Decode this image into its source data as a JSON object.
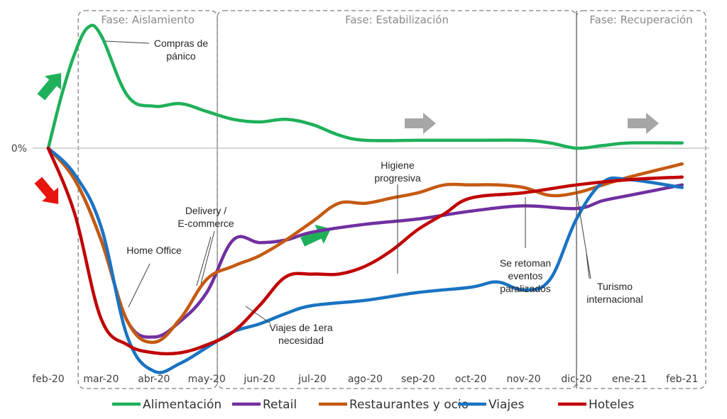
{
  "chart_data": {
    "type": "line",
    "title": "",
    "xlabel": "",
    "ylabel": "",
    "y_tick_labels": [
      "0%"
    ],
    "grid": false,
    "legend_position": "bottom",
    "categories": [
      "feb-20",
      "mar-20",
      "abr-20",
      "may-20",
      "jun-20",
      "jul-20",
      "ago-20",
      "sep-20",
      "oct-20",
      "nov-20",
      "dic-20",
      "ene-21",
      "feb-21"
    ],
    "ylim": [
      -1.0,
      0.5
    ],
    "series": [
      {
        "name": "Alimentación",
        "color": "#1fb05a",
        "points": [
          [
            0,
            0.0
          ],
          [
            0.25,
            0.2
          ],
          [
            0.5,
            0.36
          ],
          [
            0.75,
            0.46
          ],
          [
            1.0,
            0.43
          ],
          [
            1.5,
            0.2
          ],
          [
            2.0,
            0.16
          ],
          [
            2.5,
            0.17
          ],
          [
            3.0,
            0.14
          ],
          [
            3.5,
            0.11
          ],
          [
            4.0,
            0.1
          ],
          [
            4.5,
            0.11
          ],
          [
            5.0,
            0.09
          ],
          [
            5.5,
            0.05
          ],
          [
            6.0,
            0.03
          ],
          [
            7.0,
            0.03
          ],
          [
            8.0,
            0.03
          ],
          [
            9.0,
            0.03
          ],
          [
            9.5,
            0.02
          ],
          [
            10.0,
            0.0
          ],
          [
            10.5,
            0.01
          ],
          [
            11.0,
            0.02
          ],
          [
            12.0,
            0.02
          ]
        ]
      },
      {
        "name": "Retail",
        "color": "#7030a0",
        "points": [
          [
            0,
            0.0
          ],
          [
            0.5,
            -0.12
          ],
          [
            1.0,
            -0.35
          ],
          [
            1.5,
            -0.66
          ],
          [
            2.0,
            -0.72
          ],
          [
            2.5,
            -0.66
          ],
          [
            3.0,
            -0.55
          ],
          [
            3.5,
            -0.35
          ],
          [
            4.0,
            -0.36
          ],
          [
            4.5,
            -0.35
          ],
          [
            5.0,
            -0.32
          ],
          [
            6.0,
            -0.29
          ],
          [
            7.0,
            -0.27
          ],
          [
            8.0,
            -0.24
          ],
          [
            9.0,
            -0.22
          ],
          [
            10.0,
            -0.23
          ],
          [
            10.5,
            -0.2
          ],
          [
            11.0,
            -0.18
          ],
          [
            12.0,
            -0.14
          ]
        ]
      },
      {
        "name": "Restaurantes y ocio",
        "color": "#c55a11",
        "points": [
          [
            0,
            0.0
          ],
          [
            0.5,
            -0.12
          ],
          [
            1.0,
            -0.35
          ],
          [
            1.5,
            -0.66
          ],
          [
            2.0,
            -0.74
          ],
          [
            2.5,
            -0.65
          ],
          [
            3.0,
            -0.5
          ],
          [
            3.5,
            -0.45
          ],
          [
            4.0,
            -0.41
          ],
          [
            4.5,
            -0.35
          ],
          [
            5.0,
            -0.28
          ],
          [
            5.5,
            -0.21
          ],
          [
            6.0,
            -0.21
          ],
          [
            6.5,
            -0.19
          ],
          [
            7.0,
            -0.17
          ],
          [
            7.5,
            -0.14
          ],
          [
            8.0,
            -0.14
          ],
          [
            8.5,
            -0.14
          ],
          [
            9.0,
            -0.15
          ],
          [
            9.5,
            -0.18
          ],
          [
            10.0,
            -0.17
          ],
          [
            10.5,
            -0.14
          ],
          [
            11.0,
            -0.11
          ],
          [
            12.0,
            -0.06
          ]
        ]
      },
      {
        "name": "Viajes",
        "color": "#1a73c2",
        "points": [
          [
            0,
            0.0
          ],
          [
            0.5,
            -0.1
          ],
          [
            1.0,
            -0.3
          ],
          [
            1.5,
            -0.72
          ],
          [
            2.0,
            -0.85
          ],
          [
            2.5,
            -0.82
          ],
          [
            3.0,
            -0.76
          ],
          [
            3.5,
            -0.7
          ],
          [
            4.0,
            -0.67
          ],
          [
            4.5,
            -0.63
          ],
          [
            5.0,
            -0.6
          ],
          [
            6.0,
            -0.58
          ],
          [
            7.0,
            -0.55
          ],
          [
            8.0,
            -0.53
          ],
          [
            8.5,
            -0.51
          ],
          [
            9.0,
            -0.54
          ],
          [
            9.5,
            -0.5
          ],
          [
            10.0,
            -0.27
          ],
          [
            10.5,
            -0.13
          ],
          [
            11.0,
            -0.12
          ],
          [
            12.0,
            -0.15
          ]
        ]
      },
      {
        "name": "Hoteles",
        "color": "#c00000",
        "points": [
          [
            0,
            0.0
          ],
          [
            0.5,
            -0.25
          ],
          [
            1.0,
            -0.65
          ],
          [
            1.5,
            -0.75
          ],
          [
            2.0,
            -0.78
          ],
          [
            2.5,
            -0.78
          ],
          [
            3.0,
            -0.75
          ],
          [
            3.5,
            -0.7
          ],
          [
            4.0,
            -0.6
          ],
          [
            4.5,
            -0.49
          ],
          [
            5.0,
            -0.48
          ],
          [
            5.5,
            -0.48
          ],
          [
            6.0,
            -0.45
          ],
          [
            6.5,
            -0.39
          ],
          [
            7.0,
            -0.31
          ],
          [
            7.5,
            -0.25
          ],
          [
            8.0,
            -0.19
          ],
          [
            9.0,
            -0.17
          ],
          [
            10.0,
            -0.14
          ],
          [
            11.0,
            -0.12
          ],
          [
            12.0,
            -0.11
          ]
        ]
      }
    ],
    "phases": [
      {
        "label": "Fase: Aislamiento",
        "from": 0.5,
        "to": 3.2
      },
      {
        "label": "Fase: Estabilización",
        "from": 3.2,
        "to": 10.0
      },
      {
        "label": "Fase: Recuperación",
        "from": 10.0,
        "to": 12.5
      }
    ],
    "annotations": [
      {
        "lines": [
          "Compras de",
          "pánico"
        ],
        "target": [
          1.0,
          0.46
        ]
      },
      {
        "lines": [
          "Delivery /",
          "E-commerce"
        ],
        "target": [
          2.8,
          -0.55
        ]
      },
      {
        "lines": [
          "Home Office"
        ],
        "target": [
          1.7,
          -0.72
        ]
      },
      {
        "lines": [
          "Higiene",
          "progresiva"
        ],
        "target": [
          6.5,
          -0.62
        ]
      },
      {
        "lines": [
          "Viajes de 1era",
          "necesidad"
        ],
        "target": [
          4.3,
          -0.7
        ]
      },
      {
        "lines": [
          "Se retoman",
          "eventos",
          "paralizados"
        ],
        "target": [
          8.5,
          -0.19
        ]
      },
      {
        "lines": [
          "Turismo",
          "internacional"
        ],
        "target": [
          9.6,
          -0.17
        ]
      }
    ],
    "trend_arrows": [
      {
        "direction": "up",
        "color": "#1fb05a"
      },
      {
        "direction": "down",
        "color": "#e8140f"
      },
      {
        "direction": "up",
        "color": "#1fb05a"
      },
      {
        "direction": "right",
        "color": "#a6a6a6"
      },
      {
        "direction": "right",
        "color": "#a6a6a6"
      }
    ]
  }
}
